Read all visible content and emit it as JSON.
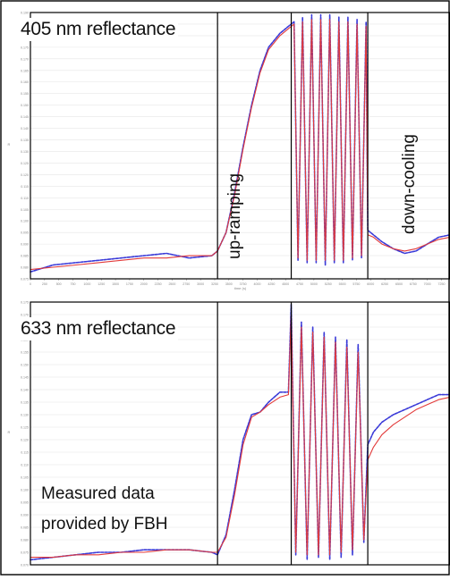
{
  "figure": {
    "top_label": "405 nm reflectance",
    "bottom_label": "633 nm reflectance",
    "caption_line1": "Measured data",
    "caption_line2": "provided by FBH",
    "phase_upramping": "up-ramping",
    "phase_downcooling": "down-cooling"
  },
  "colors": {
    "measured": "#3a3ad8",
    "fit": "#e23a3a",
    "frame": "#000000",
    "grid": "#e6e6e6",
    "tick": "#888888"
  },
  "chart_data": [
    {
      "type": "line",
      "title": "405 nm reflectance",
      "xlabel": "time (s)",
      "ylabel": "R",
      "xlim": [
        0,
        7400
      ],
      "ylim": [
        0.075,
        0.19
      ],
      "x_ticks": [
        0,
        250,
        500,
        750,
        1000,
        1250,
        1500,
        1750,
        2000,
        2250,
        2500,
        2750,
        3000,
        3250,
        3500,
        3750,
        4000,
        4250,
        4500,
        4750,
        5000,
        5250,
        5500,
        5750,
        6000,
        6250,
        6500,
        6750,
        7000,
        7250
      ],
      "y_ticks": [
        0.075,
        0.08,
        0.085,
        0.09,
        0.095,
        0.1,
        0.105,
        0.11,
        0.115,
        0.12,
        0.125,
        0.13,
        0.135,
        0.14,
        0.145,
        0.15,
        0.155,
        0.16,
        0.165,
        0.17,
        0.175,
        0.18,
        0.185,
        0.19
      ],
      "phase_boundaries_x": [
        3300,
        4600,
        5950
      ],
      "series": [
        {
          "name": "measured",
          "x": [
            0,
            400,
            800,
            1200,
            1600,
            2000,
            2400,
            2800,
            3200,
            3300,
            3450,
            3600,
            3750,
            3900,
            4050,
            4200,
            4400,
            4550,
            4650,
            4720,
            4800,
            4880,
            4960,
            5040,
            5120,
            5200,
            5280,
            5360,
            5440,
            5520,
            5600,
            5680,
            5760,
            5840,
            5920,
            5950,
            6050,
            6200,
            6400,
            6600,
            6800,
            7000,
            7200,
            7400
          ],
          "values": [
            0.078,
            0.081,
            0.082,
            0.083,
            0.084,
            0.085,
            0.086,
            0.084,
            0.085,
            0.087,
            0.095,
            0.112,
            0.132,
            0.15,
            0.165,
            0.175,
            0.181,
            0.184,
            0.186,
            0.083,
            0.188,
            0.082,
            0.189,
            0.082,
            0.189,
            0.081,
            0.189,
            0.082,
            0.188,
            0.082,
            0.188,
            0.083,
            0.187,
            0.084,
            0.186,
            0.096,
            0.094,
            0.091,
            0.088,
            0.086,
            0.087,
            0.09,
            0.093,
            0.094
          ]
        },
        {
          "name": "fit",
          "x": [
            0,
            400,
            800,
            1200,
            1600,
            2000,
            2400,
            2800,
            3200,
            3300,
            3450,
            3600,
            3750,
            3900,
            4050,
            4200,
            4400,
            4550,
            4650,
            4720,
            4800,
            4880,
            4960,
            5040,
            5120,
            5200,
            5280,
            5360,
            5440,
            5520,
            5600,
            5680,
            5760,
            5840,
            5920,
            5950,
            6050,
            6200,
            6400,
            6600,
            6800,
            7000,
            7200,
            7400
          ],
          "values": [
            0.079,
            0.08,
            0.081,
            0.082,
            0.083,
            0.084,
            0.084,
            0.085,
            0.085,
            0.087,
            0.095,
            0.111,
            0.131,
            0.149,
            0.164,
            0.174,
            0.18,
            0.183,
            0.185,
            0.084,
            0.186,
            0.083,
            0.187,
            0.083,
            0.187,
            0.083,
            0.187,
            0.083,
            0.186,
            0.083,
            0.186,
            0.084,
            0.185,
            0.085,
            0.184,
            0.094,
            0.093,
            0.09,
            0.088,
            0.087,
            0.088,
            0.09,
            0.092,
            0.093
          ]
        }
      ]
    },
    {
      "type": "line",
      "title": "633 nm reflectance",
      "xlabel": "time (s)",
      "ylabel": "R",
      "xlim": [
        0,
        7400
      ],
      "ylim": [
        0.07,
        0.175
      ],
      "y_ticks": [
        0.07,
        0.075,
        0.08,
        0.085,
        0.09,
        0.095,
        0.1,
        0.105,
        0.11,
        0.115,
        0.12,
        0.125,
        0.13,
        0.135,
        0.14,
        0.145,
        0.15,
        0.155,
        0.16,
        0.165,
        0.17,
        0.175
      ],
      "phase_boundaries_x": [
        3300,
        4600,
        5950
      ],
      "series": [
        {
          "name": "measured",
          "x": [
            0,
            400,
            800,
            1200,
            1600,
            2000,
            2400,
            2800,
            3200,
            3300,
            3450,
            3600,
            3750,
            3900,
            4050,
            4200,
            4400,
            4550,
            4600,
            4680,
            4780,
            4880,
            4980,
            5080,
            5180,
            5280,
            5380,
            5480,
            5580,
            5680,
            5780,
            5880,
            5950,
            6050,
            6200,
            6400,
            6600,
            6800,
            7000,
            7200,
            7400
          ],
          "values": [
            0.072,
            0.073,
            0.074,
            0.075,
            0.075,
            0.076,
            0.076,
            0.076,
            0.075,
            0.074,
            0.082,
            0.1,
            0.12,
            0.13,
            0.131,
            0.135,
            0.139,
            0.139,
            0.174,
            0.074,
            0.167,
            0.072,
            0.165,
            0.073,
            0.163,
            0.072,
            0.161,
            0.073,
            0.16,
            0.074,
            0.158,
            0.079,
            0.118,
            0.123,
            0.127,
            0.13,
            0.132,
            0.134,
            0.136,
            0.138,
            0.138
          ]
        },
        {
          "name": "fit",
          "x": [
            0,
            400,
            800,
            1200,
            1600,
            2000,
            2400,
            2800,
            3200,
            3300,
            3450,
            3600,
            3750,
            3900,
            4050,
            4200,
            4400,
            4550,
            4600,
            4680,
            4780,
            4880,
            4980,
            5080,
            5180,
            5280,
            5380,
            5480,
            5580,
            5680,
            5780,
            5880,
            5950,
            6050,
            6200,
            6400,
            6600,
            6800,
            7000,
            7200,
            7400
          ],
          "values": [
            0.073,
            0.073,
            0.074,
            0.074,
            0.075,
            0.075,
            0.076,
            0.076,
            0.075,
            0.075,
            0.081,
            0.098,
            0.118,
            0.129,
            0.131,
            0.134,
            0.137,
            0.138,
            0.17,
            0.075,
            0.165,
            0.074,
            0.163,
            0.074,
            0.161,
            0.074,
            0.159,
            0.075,
            0.157,
            0.076,
            0.155,
            0.08,
            0.112,
            0.117,
            0.122,
            0.126,
            0.129,
            0.132,
            0.134,
            0.136,
            0.137
          ]
        }
      ]
    }
  ]
}
